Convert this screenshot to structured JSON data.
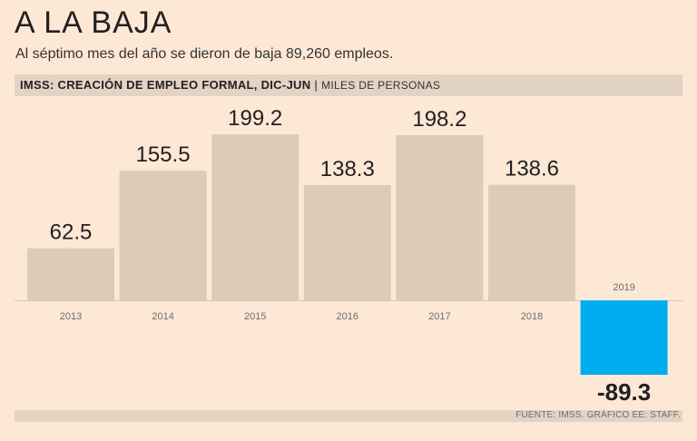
{
  "title": "A LA BAJA",
  "subtitle": "Al séptimo mes del año se dieron de baja 89,260 empleos.",
  "header": {
    "chart_title": "IMSS: CREACIÓN DE EMPLEO FORMAL, DIC-JUN",
    "separator": "|",
    "unit": "MILES DE PERSONAS"
  },
  "source": "FUENTE: IMSS. GRÁFICO EE: STAFF.",
  "colors": {
    "positive_bar": "#ddcbb9",
    "negative_bar": "#00aeef",
    "background": "#fde8d6",
    "band": "#e2d3c4"
  },
  "chart_data": {
    "type": "bar",
    "categories": [
      "2013",
      "2014",
      "2015",
      "2016",
      "2017",
      "2018",
      "2019"
    ],
    "values": [
      62.5,
      155.5,
      199.2,
      138.3,
      198.2,
      138.6,
      -89.3
    ],
    "value_labels": [
      "62.5",
      "155.5",
      "199.2",
      "138.3",
      "198.2",
      "138.6",
      "-89.3"
    ],
    "ylim": [
      -89.3,
      199.2
    ],
    "grid": false,
    "legend": "none"
  }
}
